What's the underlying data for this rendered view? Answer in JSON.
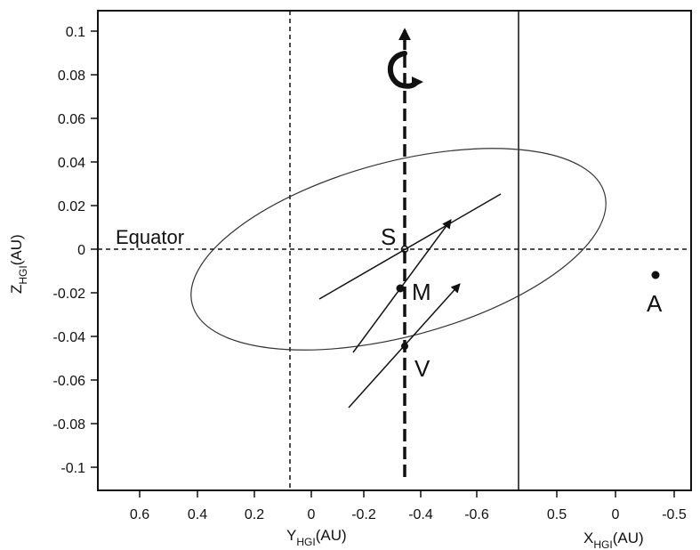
{
  "figure": {
    "y_axis": {
      "title_main": "Z",
      "title_sub": "HGI",
      "title_unit": "(AU)",
      "ticks": [
        "0.1",
        "0.08",
        "0.06",
        "0.04",
        "0.02",
        "0",
        "-0.02",
        "-0.04",
        "-0.06",
        "-0.08",
        "-0.1"
      ],
      "range": [
        -0.11,
        0.11
      ]
    },
    "x_axis_left": {
      "title_main": "Y",
      "title_sub": "HGI",
      "title_unit": "(AU)",
      "ticks": [
        "0.6",
        "0.4",
        "0.2",
        "0",
        "-0.2",
        "-0.4",
        "-0.6"
      ]
    },
    "x_axis_right": {
      "title_main": "X",
      "title_sub": "HGI",
      "title_unit": "(AU)",
      "ticks": [
        "0.5",
        "0",
        "-0.5"
      ]
    },
    "labels": {
      "equator": "Equator",
      "sun": "S",
      "mercury": "M",
      "venus": "V",
      "point_a": "A"
    },
    "points": {
      "sun": {
        "z": 0
      },
      "mercury": {
        "z": -0.018
      },
      "venus": {
        "z": -0.045
      },
      "point_a": {
        "z": -0.012
      }
    },
    "colors": {
      "ink": "#111111",
      "background": "#ffffff"
    },
    "icons": {
      "rotation": "curved-rotation-arrow-icon"
    }
  }
}
